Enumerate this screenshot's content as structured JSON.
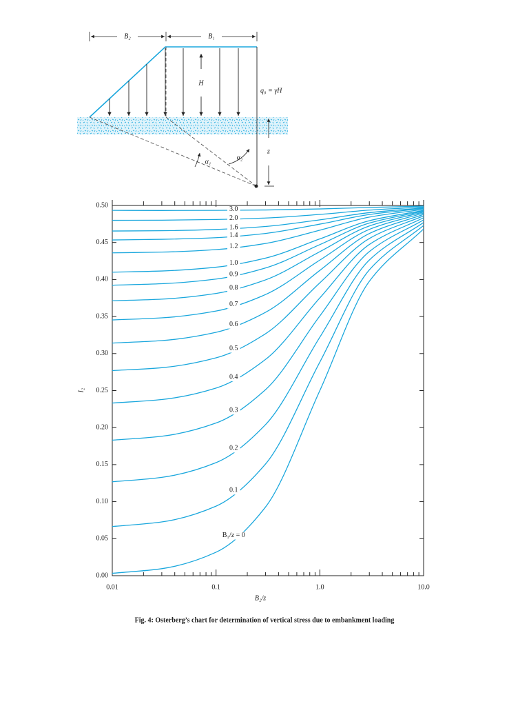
{
  "diagram": {
    "labels": {
      "b2": "B₂",
      "b1": "B₁",
      "h": "H",
      "q": "q₀ = γH",
      "alpha1": "α₁",
      "alpha2": "α₂",
      "z": "z"
    }
  },
  "chart_data": {
    "type": "line",
    "xlabel": "B₂/z",
    "ylabel": "I₂",
    "xscale": "log",
    "color": "#1aa7dd",
    "x": [
      0.01,
      0.03,
      0.1,
      0.3,
      1,
      3,
      10
    ],
    "series": [
      {
        "name": "3.0",
        "values": [
          0.4934,
          0.4932,
          0.4934,
          0.4939,
          0.4953,
          0.4973,
          0.499
        ]
      },
      {
        "name": "2.0",
        "values": [
          0.4799,
          0.4801,
          0.481,
          0.483,
          0.4879,
          0.4937,
          0.4978
        ]
      },
      {
        "name": "1.6",
        "values": [
          0.4655,
          0.4659,
          0.4676,
          0.4716,
          0.4806,
          0.4903,
          0.4967
        ]
      },
      {
        "name": "1.4",
        "values": [
          0.4534,
          0.4543,
          0.4565,
          0.4622,
          0.4748,
          0.4878,
          0.4959
        ]
      },
      {
        "name": "1.2",
        "values": [
          0.436,
          0.437,
          0.4404,
          0.4487,
          0.4666,
          0.4843,
          0.4948
        ]
      },
      {
        "name": "1.0",
        "values": [
          0.4099,
          0.4115,
          0.4166,
          0.4289,
          0.4548,
          0.4794,
          0.4933
        ]
      },
      {
        "name": "0.9",
        "values": [
          0.3923,
          0.3943,
          0.4006,
          0.4156,
          0.4471,
          0.4762,
          0.4923
        ]
      },
      {
        "name": "0.8",
        "values": [
          0.3713,
          0.3735,
          0.3812,
          0.3995,
          0.4376,
          0.4723,
          0.4911
        ]
      },
      {
        "name": "0.7",
        "values": [
          0.3454,
          0.3482,
          0.3574,
          0.3797,
          0.4262,
          0.4677,
          0.4897
        ]
      },
      {
        "name": "0.6",
        "values": [
          0.3142,
          0.3175,
          0.3287,
          0.3557,
          0.4123,
          0.4621,
          0.4879
        ]
      },
      {
        "name": "0.5",
        "values": [
          0.277,
          0.2809,
          0.2942,
          0.3268,
          0.3955,
          0.4554,
          0.4859
        ]
      },
      {
        "name": "0.4",
        "values": [
          0.2332,
          0.2379,
          0.2534,
          0.2921,
          0.3752,
          0.4473,
          0.4834
        ]
      },
      {
        "name": "0.3",
        "values": [
          0.183,
          0.1883,
          0.2062,
          0.2513,
          0.3508,
          0.4377,
          0.4805
        ]
      },
      {
        "name": "0.2",
        "values": [
          0.1268,
          0.1328,
          0.1527,
          0.2041,
          0.3221,
          0.4263,
          0.477
        ]
      },
      {
        "name": "0.1",
        "values": [
          0.0664,
          0.0726,
          0.0939,
          0.1509,
          0.2885,
          0.413,
          0.473
        ]
      },
      {
        "name": "B₁/z = 0",
        "values": [
          0.0032,
          0.0095,
          0.0317,
          0.0928,
          0.25,
          0.3976,
          0.4683
        ]
      }
    ],
    "xlim": [
      0.01,
      10
    ],
    "xticks": [
      0.01,
      0.1,
      {
        "value": 1,
        "label": "1.0"
      },
      {
        "value": 10,
        "label": "10.0"
      }
    ],
    "xminorticks": [
      0.02,
      0.03,
      0.04,
      0.05,
      0.06,
      0.07,
      0.08,
      0.09,
      0.2,
      0.3,
      0.4,
      0.5,
      0.6,
      0.7,
      0.8,
      0.9,
      2,
      3,
      4,
      5,
      6,
      7,
      8,
      9
    ],
    "ylim": [
      0,
      0.5
    ],
    "yticks": [
      {
        "value": 0,
        "label": "0.00"
      },
      {
        "value": 0.05,
        "label": "0.05"
      },
      {
        "value": 0.1,
        "label": "0.10"
      },
      {
        "value": 0.15,
        "label": "0.15"
      },
      {
        "value": 0.2,
        "label": "0.20"
      },
      {
        "value": 0.25,
        "label": "0.25"
      },
      {
        "value": 0.3,
        "label": "0.30"
      },
      {
        "value": 0.35,
        "label": "0.35"
      },
      {
        "value": 0.4,
        "label": "0.40"
      },
      {
        "value": 0.45,
        "label": "0.45"
      },
      {
        "value": 0.5,
        "label": "0.50"
      }
    ],
    "grid": false
  },
  "caption": "Fig. 4: Osterberg’s chart for determination of vertical stress due to embankment loading"
}
